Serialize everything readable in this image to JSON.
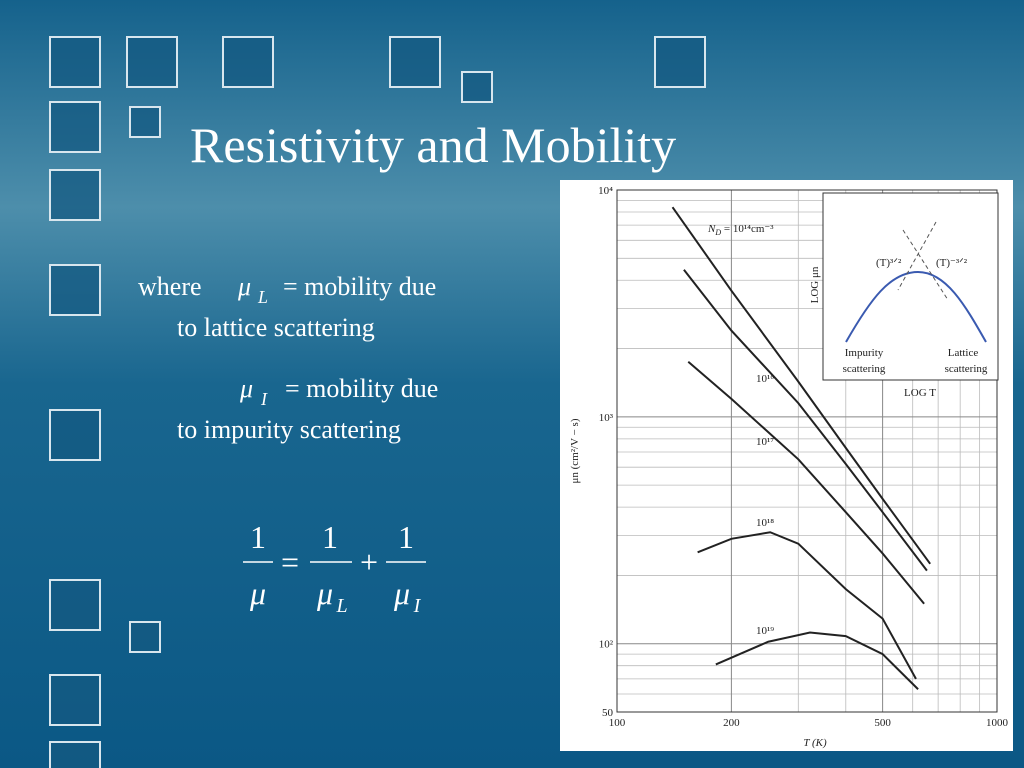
{
  "slide": {
    "title": "Resistivity and Mobility",
    "where": "where",
    "mu_l_symbol": "μ",
    "mu_l_sub": "L",
    "mu_l_desc": "= mobility due",
    "mu_l_desc2": "to lattice scattering",
    "mu_i_symbol": "μ",
    "mu_i_sub": "I",
    "mu_i_desc": "= mobility due",
    "mu_i_desc2": "to impurity scattering",
    "equation": {
      "lhs_num": "1",
      "lhs_den": "μ",
      "eq": "=",
      "t1_num": "1",
      "t1_den": "μ",
      "t1_sub": "L",
      "plus": "+",
      "t2_num": "1",
      "t2_den": "μ",
      "t2_sub": "I"
    }
  },
  "chart_data": {
    "type": "line",
    "x_label": "T (K)",
    "y_label": "μn (cm²/V − s)",
    "x_log": true,
    "y_log": true,
    "grid": true,
    "color": "#222222",
    "xlim": [
      100,
      1000
    ],
    "ylim": [
      50,
      10000
    ],
    "xticks": [
      100,
      200,
      500,
      1000
    ],
    "yticks": [
      {
        "value": 50,
        "label": "50"
      },
      {
        "value": 100,
        "label": "10²"
      },
      {
        "value": 1000,
        "label": "10³"
      },
      {
        "value": 10000,
        "label": "10⁴"
      }
    ],
    "x_minor_ticks": [
      300,
      400,
      600,
      700,
      800,
      900
    ],
    "y_minor_ticks": [
      60,
      70,
      80,
      90,
      200,
      300,
      400,
      500,
      600,
      700,
      800,
      900,
      2000,
      3000,
      4000,
      5000,
      6000,
      7000,
      8000,
      9000
    ],
    "nd_symbol": "N",
    "nd_sub": "D",
    "nd_eq": " = ",
    "series": [
      {
        "name": "10¹⁴cm⁻³",
        "x": [
          140,
          200,
          300,
          400,
          500,
          667
        ],
        "values": [
          8400,
          3600,
          1430,
          730,
          435,
          225
        ]
      },
      {
        "name": "10¹⁶",
        "x": [
          150,
          200,
          300,
          400,
          500,
          654
        ],
        "values": [
          4450,
          2400,
          1150,
          620,
          380,
          210
        ]
      },
      {
        "name": "10¹⁷",
        "x": [
          154,
          200,
          300,
          400,
          500,
          643
        ],
        "values": [
          1750,
          1200,
          650,
          380,
          250,
          150
        ]
      },
      {
        "name": "10¹⁸",
        "x": [
          163,
          200,
          253,
          300,
          400,
          500,
          612
        ],
        "values": [
          253,
          290,
          310,
          276,
          174,
          129,
          70
        ]
      },
      {
        "name": "10¹⁹",
        "x": [
          182,
          250,
          322,
          400,
          500,
          620
        ],
        "values": [
          81,
          102,
          112,
          108,
          90,
          63
        ]
      }
    ],
    "inset": {
      "y_label": "LOG μn",
      "x_label": "LOG T",
      "impurity_power": "(T)³ᐟ²",
      "lattice_power": "(T)⁻³ᐟ²",
      "impurity_1": "Impurity",
      "impurity_2": "scattering",
      "lattice_1": "Lattice",
      "lattice_2": "scattering"
    }
  }
}
